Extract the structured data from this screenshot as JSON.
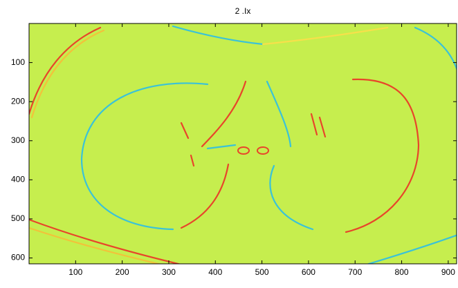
{
  "chart_data": {
    "type": "image",
    "title": "2 .Ix",
    "xlim": [
      0,
      918
    ],
    "xticks": [
      100,
      200,
      300,
      400,
      500,
      600,
      700,
      800,
      900
    ],
    "ylim": [
      0,
      615
    ],
    "yticks": [
      100,
      200,
      300,
      400,
      500,
      600
    ],
    "y_reversed": true
  }
}
